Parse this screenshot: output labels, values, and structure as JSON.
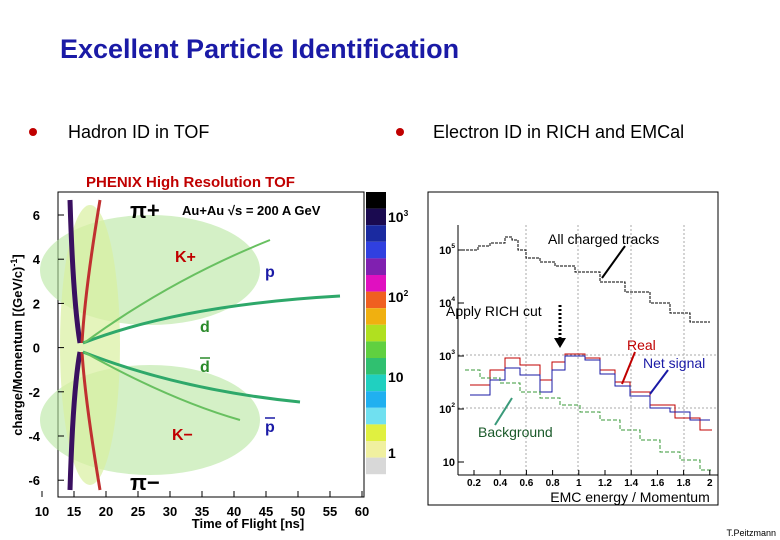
{
  "header": {
    "title": "Excellent Particle Identification"
  },
  "bullets": [
    "Hadron ID in TOF",
    "Electron ID in RICH and EMCal"
  ],
  "left_plot": {
    "title": "PHENIX High Resolution TOF",
    "subtitle": "Au+Au √s = 200 A GeV",
    "x_label": "Time of Flight [ns]",
    "y_label": "charge/Momentum [(GeV/c)",
    "y_label_exp": "-1",
    "y_label_end": "]",
    "xticks": [
      "10",
      "15",
      "20",
      "25",
      "30",
      "35",
      "40",
      "45",
      "50",
      "55",
      "60"
    ],
    "yticks": [
      "6",
      "4",
      "2",
      "0",
      "-2",
      "-4",
      "-6"
    ],
    "particles": [
      "π+",
      "K+",
      "p",
      "d",
      "d",
      "K−",
      "p",
      "π−"
    ],
    "scale_labels": [
      {
        "base": "10",
        "exp": "3"
      },
      {
        "base": "10",
        "exp": "2"
      },
      {
        "base": "10",
        "exp": ""
      },
      {
        "base": "1",
        "exp": ""
      }
    ]
  },
  "right_plot": {
    "x_label": "EMC energy / Momentum",
    "xticks": [
      "0.2",
      "0.4",
      "0.6",
      "0.8",
      "1",
      "1.2",
      "1.4",
      "1.6",
      "1.8",
      "2"
    ],
    "yticks": [
      {
        "base": "10",
        "exp": "5"
      },
      {
        "base": "10",
        "exp": "4"
      },
      {
        "base": "10",
        "exp": "3"
      },
      {
        "base": "10",
        "exp": "2"
      },
      {
        "base": "10",
        "exp": ""
      }
    ],
    "annotations": [
      "All charged tracks",
      "Apply RICH cut",
      "Real",
      "Net signal",
      "Background"
    ]
  },
  "footer": "T.Peitzmann"
}
